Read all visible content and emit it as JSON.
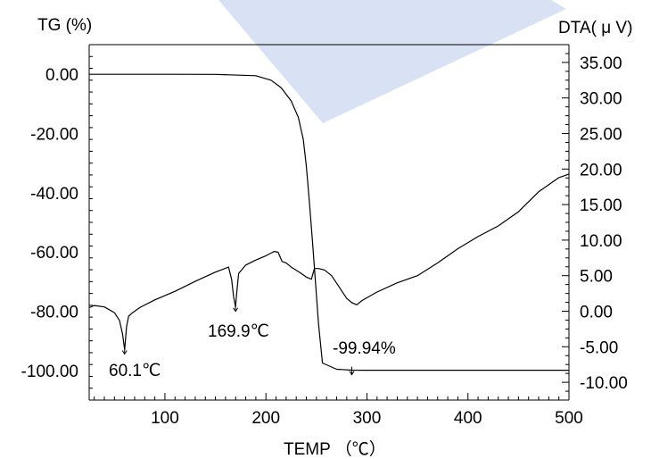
{
  "chart_data": {
    "type": "line",
    "xlabel": "TEMP （℃）",
    "ylabel_left": "TG (%)",
    "ylabel_right": "DTA( μ V)",
    "xlim": [
      25,
      500
    ],
    "ylim_left": [
      -110,
      10
    ],
    "ylim_right": [
      -12.5,
      37.5
    ],
    "x_ticks": [
      "100",
      "200",
      "300",
      "400",
      "500"
    ],
    "y_left_ticks": [
      "0.00",
      "-20.00",
      "-40.00",
      "-60.00",
      "-80.00",
      "-100.00"
    ],
    "y_right_ticks": [
      "35.00",
      "30.00",
      "25.00",
      "20.00",
      "15.00",
      "10.00",
      "5.00",
      "0.00",
      "-5.00",
      "-10.00"
    ],
    "grid": false,
    "series": [
      {
        "axis": "left",
        "x": [
          25,
          100,
          150,
          190,
          205,
          215,
          225,
          232,
          237,
          240,
          243,
          246,
          249,
          252,
          256,
          270,
          285,
          300,
          400,
          500
        ],
        "y": [
          0,
          0,
          -0.05,
          -0.5,
          -2,
          -4.5,
          -9,
          -14.5,
          -22,
          -31,
          -43,
          -56,
          -70,
          -84,
          -97.5,
          -99.6,
          -99.9,
          -99.94,
          -99.94,
          -99.94
        ]
      },
      {
        "axis": "right",
        "x": [
          25,
          30,
          40,
          50,
          55,
          58,
          60.1,
          62,
          64,
          68,
          75,
          90,
          110,
          130,
          150,
          163,
          166,
          168,
          169.9,
          171,
          173,
          180,
          190,
          200,
          208,
          212,
          216,
          220,
          225,
          233,
          240,
          245,
          248,
          252,
          258,
          265,
          272,
          280,
          285,
          290,
          295,
          310,
          330,
          350,
          370,
          390,
          410,
          430,
          450,
          470,
          490,
          500
        ],
        "y": [
          0.5,
          0.8,
          0.6,
          -0.2,
          -1.3,
          -3.2,
          -5.4,
          -2.2,
          -0.7,
          -0.2,
          0.5,
          1.6,
          2.8,
          4.2,
          5.5,
          6.2,
          4.5,
          2.0,
          0.6,
          2.5,
          5.3,
          6.5,
          7.2,
          7.8,
          8.4,
          8.3,
          7.0,
          6.8,
          6.2,
          5.5,
          4.8,
          4.5,
          6.0,
          6.0,
          5.8,
          5.0,
          3.5,
          1.8,
          1.2,
          0.9,
          1.5,
          2.7,
          4.0,
          5.0,
          6.8,
          8.8,
          10.5,
          12.0,
          14.0,
          16.8,
          18.8,
          19.3
        ]
      }
    ],
    "annotations": [
      {
        "text": "60.1℃",
        "x": 60.1,
        "y_right": -5.4
      },
      {
        "text": "169.9℃",
        "x": 169.9,
        "y_right": 0.6
      },
      {
        "text": "-99.94%",
        "x": 285,
        "y_left": -99.94
      }
    ]
  }
}
